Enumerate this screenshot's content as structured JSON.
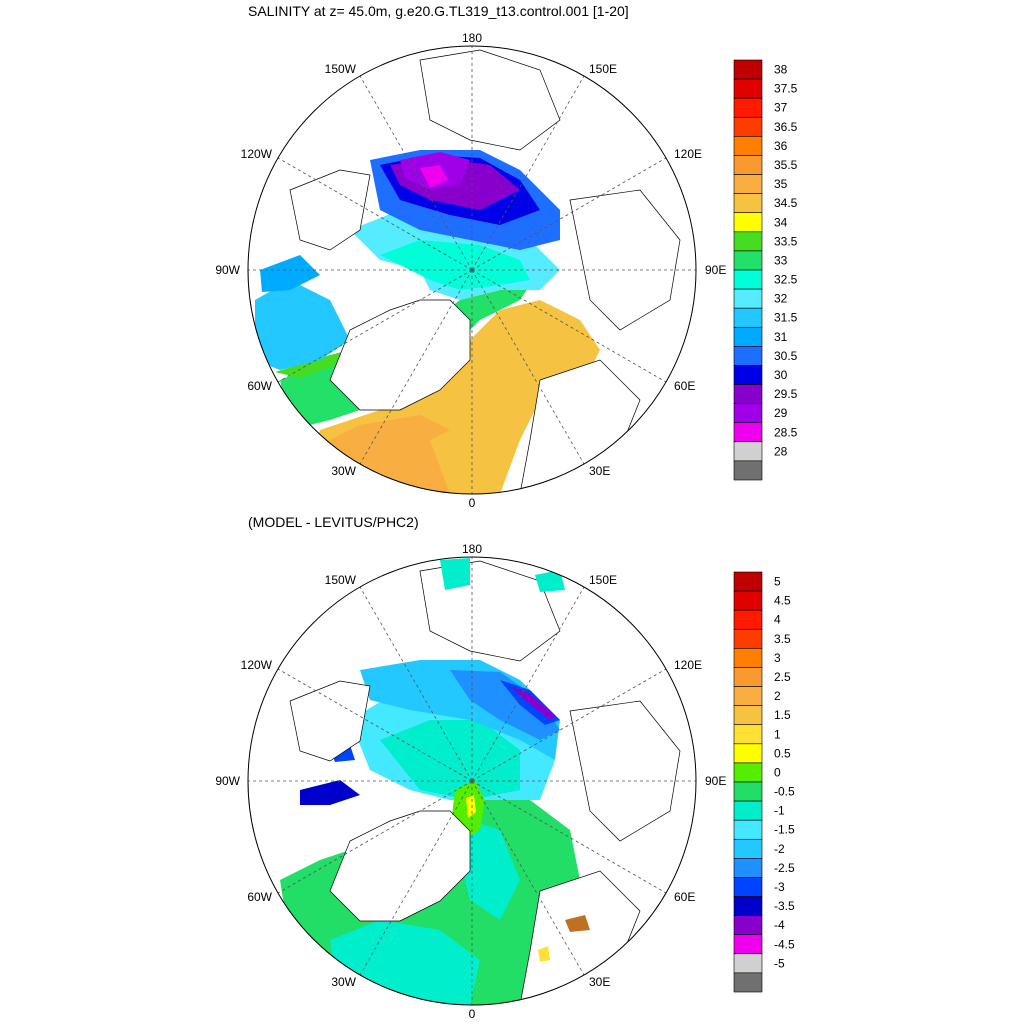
{
  "panels": [
    {
      "title": "SALINITY at z=  45.0m, g.e20.G.TL319_t13.control.001 [1-20]",
      "longitude_labels": [
        "180",
        "150E",
        "120E",
        "90E",
        "60E",
        "30E",
        "0",
        "30W",
        "60W",
        "90W",
        "120W",
        "150W"
      ],
      "colorbar": {
        "labels": [
          "38",
          "37.5",
          "37",
          "36.5",
          "36",
          "35.5",
          "35",
          "34.5",
          "34",
          "33.5",
          "33",
          "32.5",
          "32",
          "31.5",
          "31",
          "30.5",
          "30",
          "29.5",
          "29",
          "28.5",
          "28"
        ],
        "colors": [
          "#c00000",
          "#e00000",
          "#ff1a00",
          "#ff3c00",
          "#ff8000",
          "#f89a30",
          "#f8ae40",
          "#f5c242",
          "#ffff00",
          "#44dd22",
          "#22e068",
          "#00ffd8",
          "#55ecff",
          "#22c8ff",
          "#00aaff",
          "#1e6eff",
          "#0000e8",
          "#8800cc",
          "#a000e8",
          "#ee00ee",
          "#d0d0d0",
          "#707070"
        ]
      }
    },
    {
      "title": "(MODEL - LEVITUS/PHC2)",
      "longitude_labels": [
        "180",
        "150E",
        "120E",
        "90E",
        "60E",
        "30E",
        "0",
        "30W",
        "60W",
        "90W",
        "120W",
        "150W"
      ],
      "colorbar": {
        "labels": [
          "5",
          "4.5",
          "4",
          "3.5",
          "3",
          "2.5",
          "2",
          "1.5",
          "1",
          "0.5",
          "0",
          "-0.5",
          "-1",
          "-1.5",
          "-2",
          "-2.5",
          "-3",
          "-3.5",
          "-4",
          "-4.5",
          "-5"
        ],
        "colors": [
          "#c00000",
          "#e00000",
          "#ff1a00",
          "#ff3c00",
          "#ff8000",
          "#f89a30",
          "#f8ae40",
          "#f5c242",
          "#ffe033",
          "#ffff00",
          "#55ee00",
          "#22dd66",
          "#00eecc",
          "#44e8ff",
          "#22c8ff",
          "#1e90ff",
          "#0044ff",
          "#0000cc",
          "#8800cc",
          "#ee00ee",
          "#d0d0d0",
          "#707070"
        ]
      }
    }
  ]
}
